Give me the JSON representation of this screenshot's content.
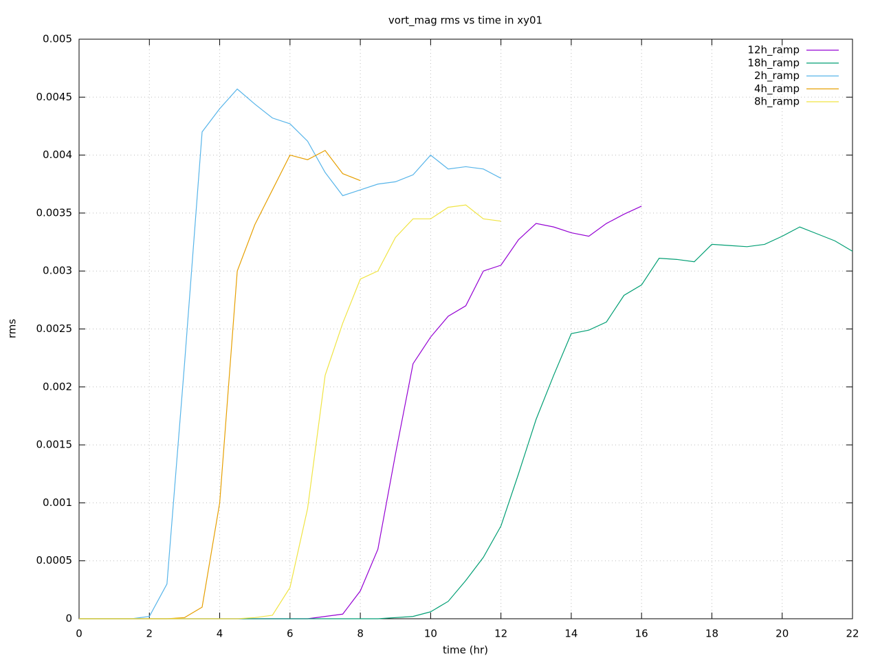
{
  "chart_data": {
    "type": "line",
    "title": "vort_mag rms vs time in xy01",
    "xlabel": "time (hr)",
    "ylabel": "rms",
    "xlim": [
      0,
      22
    ],
    "ylim": [
      0,
      0.005
    ],
    "xticks": [
      0,
      2,
      4,
      6,
      8,
      10,
      12,
      14,
      16,
      18,
      20,
      22
    ],
    "yticks": [
      0,
      0.0005,
      0.001,
      0.0015,
      0.002,
      0.0025,
      0.003,
      0.0035,
      0.004,
      0.0045,
      0.005
    ],
    "grid": true,
    "legend": "top-right",
    "x": [
      0,
      0.5,
      1,
      1.5,
      2,
      2.5,
      3,
      3.5,
      4,
      4.5,
      5,
      5.5,
      6,
      6.5,
      7,
      7.5,
      8,
      8.5,
      9,
      9.5,
      10,
      10.5,
      11,
      11.5,
      12,
      12.5,
      13,
      13.5,
      14,
      14.5,
      15,
      15.5,
      16,
      16.5,
      17,
      17.5,
      18,
      18.5,
      19,
      19.5,
      20,
      20.5,
      21,
      21.5,
      22
    ],
    "series": [
      {
        "name": "12h_ramp",
        "color": "#9400d3",
        "values": [
          0,
          0,
          0,
          0,
          0,
          0,
          0,
          0,
          0,
          0,
          0,
          0,
          0,
          0,
          2e-05,
          4e-05,
          0.00024,
          0.0006,
          0.00142,
          0.0022,
          0.00243,
          0.00261,
          0.0027,
          0.003,
          0.00305,
          0.00327,
          0.00341,
          0.00338,
          0.00333,
          0.0033,
          0.00341,
          0.00349,
          0.00356,
          null,
          null,
          null,
          null,
          null,
          null,
          null,
          null,
          null,
          null,
          null,
          null
        ]
      },
      {
        "name": "18h_ramp",
        "color": "#009e73",
        "values": [
          0,
          0,
          0,
          0,
          0,
          0,
          0,
          0,
          0,
          0,
          0,
          0,
          0,
          0,
          0,
          0,
          0,
          0,
          1e-05,
          2e-05,
          6e-05,
          0.00015,
          0.00033,
          0.00053,
          0.0008,
          0.00125,
          0.00172,
          0.0021,
          0.00246,
          0.00249,
          0.00256,
          0.00279,
          0.00288,
          0.00311,
          0.0031,
          0.00308,
          0.00323,
          0.00322,
          0.00321,
          0.00323,
          0.0033,
          0.00338,
          0.00332,
          0.00326,
          0.00317
        ]
      },
      {
        "name": "2h_ramp",
        "color": "#56b4e9",
        "values": [
          0,
          0,
          0,
          0,
          2e-05,
          0.0003,
          0.0022,
          0.0042,
          0.0044,
          0.00457,
          0.00444,
          0.00432,
          0.00427,
          0.00412,
          0.00385,
          0.00365,
          0.0037,
          0.00375,
          0.00377,
          0.00383,
          0.004,
          0.00388,
          0.0039,
          0.00388,
          0.0038,
          null,
          null,
          null,
          null,
          null,
          null,
          null,
          null,
          null,
          null,
          null,
          null,
          null,
          null,
          null,
          null,
          null,
          null,
          null,
          null
        ]
      },
      {
        "name": "4h_ramp",
        "color": "#e69f00",
        "values": [
          0,
          0,
          0,
          0,
          0,
          0,
          1e-05,
          0.0001,
          0.001,
          0.003,
          0.0034,
          0.0037,
          0.004,
          0.00396,
          0.00404,
          0.00384,
          0.00378,
          null,
          null,
          null,
          null,
          null,
          null,
          null,
          null,
          null,
          null,
          null,
          null,
          null,
          null,
          null,
          null,
          null,
          null,
          null,
          null,
          null,
          null,
          null,
          null,
          null,
          null,
          null,
          null
        ]
      },
      {
        "name": "8h_ramp",
        "color": "#f0e442",
        "values": [
          0,
          0,
          0,
          0,
          0,
          0,
          0,
          0,
          0,
          0,
          1e-05,
          3e-05,
          0.00027,
          0.00095,
          0.0021,
          0.00255,
          0.00293,
          0.003,
          0.00329,
          0.00345,
          0.00345,
          0.00355,
          0.00357,
          0.00345,
          0.00343,
          null,
          null,
          null,
          null,
          null,
          null,
          null,
          null,
          null,
          null,
          null,
          null,
          null,
          null,
          null,
          null,
          null,
          null,
          null,
          null
        ]
      }
    ]
  }
}
